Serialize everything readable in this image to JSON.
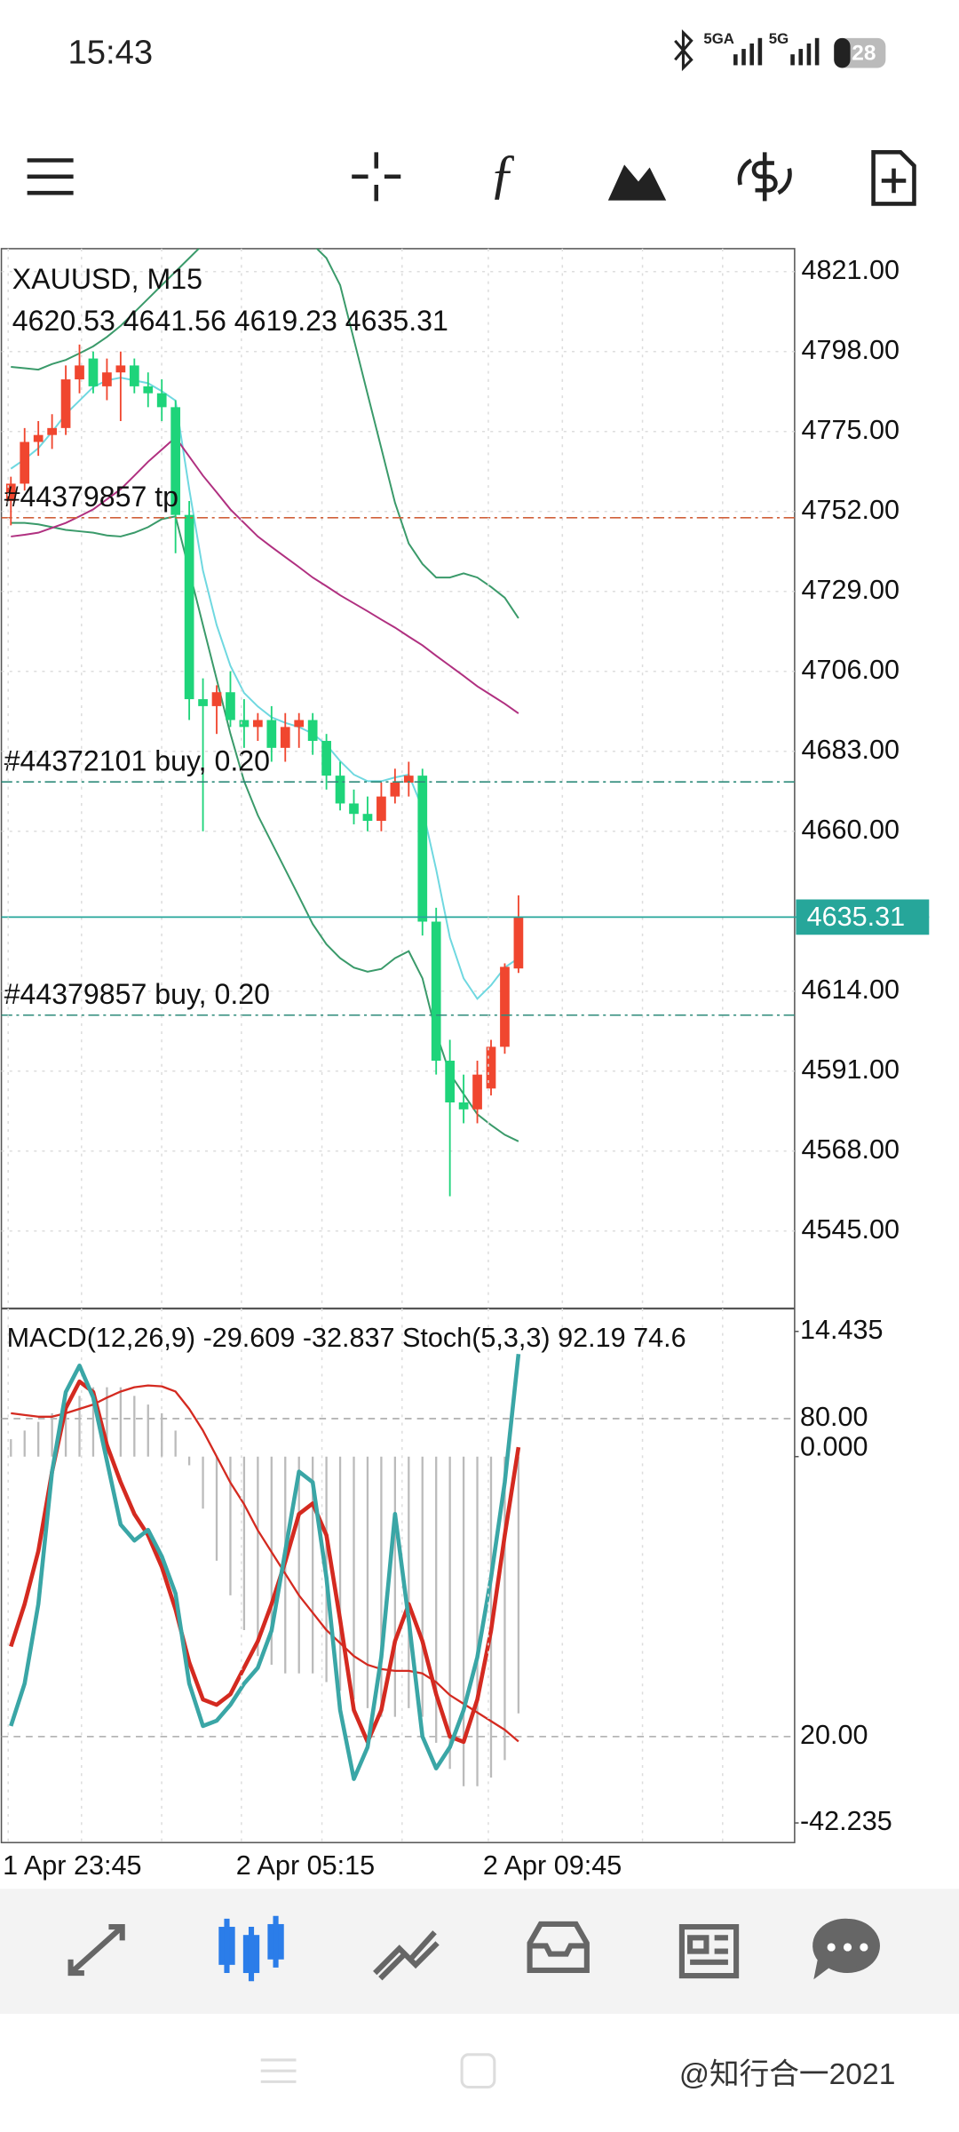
{
  "status_bar": {
    "time": "15:43",
    "net1": "5GA",
    "net2": "5G",
    "battery": "28"
  },
  "watermark": "@知行合一2021",
  "chart_data": [
    {
      "type": "candlestick",
      "title": "XAUUSD, M15",
      "categories": [
        "1 Apr 23:45",
        null,
        null,
        null,
        null,
        null,
        null,
        null,
        null,
        null,
        null,
        null,
        null,
        null,
        null,
        null,
        null,
        "2 Apr 05:15",
        null,
        null,
        null,
        null,
        null,
        null,
        null,
        null,
        null,
        null,
        null,
        null,
        null,
        null,
        null,
        null,
        null,
        "2 Apr 09:45",
        null,
        null
      ],
      "candles": [
        {
          "open": 4755,
          "high": 4762,
          "low": 4748,
          "close": 4760
        },
        {
          "open": 4760,
          "high": 4776,
          "low": 4758,
          "close": 4772
        },
        {
          "open": 4772,
          "high": 4778,
          "low": 4768,
          "close": 4774
        },
        {
          "open": 4774,
          "high": 4780,
          "low": 4770,
          "close": 4776
        },
        {
          "open": 4776,
          "high": 4794,
          "low": 4774,
          "close": 4790
        },
        {
          "open": 4790,
          "high": 4800,
          "low": 4786,
          "close": 4794
        },
        {
          "open": 4796,
          "high": 4798,
          "low": 4786,
          "close": 4788
        },
        {
          "open": 4788,
          "high": 4796,
          "low": 4784,
          "close": 4792
        },
        {
          "open": 4792,
          "high": 4798,
          "low": 4778,
          "close": 4794
        },
        {
          "open": 4794,
          "high": 4796,
          "low": 4786,
          "close": 4788
        },
        {
          "open": 4788,
          "high": 4792,
          "low": 4782,
          "close": 4786
        },
        {
          "open": 4786,
          "high": 4790,
          "low": 4778,
          "close": 4782
        },
        {
          "open": 4782,
          "high": 4784,
          "low": 4740,
          "close": 4751
        },
        {
          "open": 4751,
          "high": 4755,
          "low": 4692,
          "close": 4698
        },
        {
          "open": 4698,
          "high": 4704,
          "low": 4660,
          "close": 4696
        },
        {
          "open": 4696,
          "high": 4702,
          "low": 4688,
          "close": 4700
        },
        {
          "open": 4700,
          "high": 4706,
          "low": 4690,
          "close": 4692
        },
        {
          "open": 4692,
          "high": 4698,
          "low": 4684,
          "close": 4690
        },
        {
          "open": 4690,
          "high": 4694,
          "low": 4686,
          "close": 4692
        },
        {
          "open": 4692,
          "high": 4696,
          "low": 4680,
          "close": 4684
        },
        {
          "open": 4684,
          "high": 4694,
          "low": 4680,
          "close": 4690
        },
        {
          "open": 4690,
          "high": 4694,
          "low": 4684,
          "close": 4692
        },
        {
          "open": 4692,
          "high": 4694,
          "low": 4682,
          "close": 4686
        },
        {
          "open": 4686,
          "high": 4688,
          "low": 4672,
          "close": 4676
        },
        {
          "open": 4676,
          "high": 4680,
          "low": 4666,
          "close": 4668
        },
        {
          "open": 4668,
          "high": 4672,
          "low": 4662,
          "close": 4665
        },
        {
          "open": 4665,
          "high": 4670,
          "low": 4660,
          "close": 4663
        },
        {
          "open": 4663,
          "high": 4674,
          "low": 4660,
          "close": 4670
        },
        {
          "open": 4670,
          "high": 4678,
          "low": 4668,
          "close": 4674
        },
        {
          "open": 4674,
          "high": 4680,
          "low": 4670,
          "close": 4676
        },
        {
          "open": 4676,
          "high": 4678,
          "low": 4630,
          "close": 4634
        },
        {
          "open": 4634,
          "high": 4638,
          "low": 4590,
          "close": 4594
        },
        {
          "open": 4594,
          "high": 4600,
          "low": 4555,
          "close": 4582
        },
        {
          "open": 4582,
          "high": 4590,
          "low": 4576,
          "close": 4580
        },
        {
          "open": 4580,
          "high": 4594,
          "low": 4576,
          "close": 4590
        },
        {
          "open": 4586,
          "high": 4600,
          "low": 4584,
          "close": 4598
        },
        {
          "open": 4598,
          "high": 4622,
          "low": 4596,
          "close": 4621
        },
        {
          "open": 4620.53,
          "high": 4641.56,
          "low": 4619.23,
          "close": 4635.31
        }
      ],
      "up_color": "#f0462f",
      "down_color": "#1ed47a",
      "lines": [
        {
          "color": "#3a9a6a",
          "values": [
            4793.6,
            4793.2,
            4792.8,
            4794.4,
            4795.6,
            4797.5,
            4799.5,
            4802.2,
            4805.4,
            4809.3,
            4813.2,
            4817.1,
            4821,
            4824.9,
            4828.8,
            4830.8,
            4832.7,
            4833.5,
            4834.7,
            4833.5,
            4832.7,
            4830.8,
            4828.8,
            4824.9,
            4817.1,
            4801.5,
            4785.8,
            4770.2,
            4754.5,
            4742.8,
            4736.9,
            4733,
            4733,
            4734.2,
            4733,
            4730.3,
            4727.2,
            4721.3
          ]
        },
        {
          "color": "#3a9a6a",
          "values": [
            4748.7,
            4748.7,
            4748.3,
            4747.5,
            4746.7,
            4746.3,
            4745.9,
            4745.1,
            4744.8,
            4745.9,
            4747.5,
            4749.8,
            4750.6,
            4735,
            4719.3,
            4703.7,
            4688.1,
            4674.4,
            4664.6,
            4656.8,
            4649,
            4641.2,
            4633.3,
            4627.5,
            4623.5,
            4620.8,
            4619.6,
            4620.4,
            4623.5,
            4625.5,
            4617.7,
            4602,
            4590.3,
            4584.4,
            4578.6,
            4575.5,
            4572.7,
            4570.8
          ]
        },
        {
          "color": "#6fd8e0",
          "values": [
            4764.3,
            4767,
            4770.2,
            4774.9,
            4780,
            4783.9,
            4787.8,
            4789.7,
            4790.5,
            4789.7,
            4788.9,
            4786.6,
            4783.9,
            4758.4,
            4735,
            4719.3,
            4707.6,
            4699.8,
            4695.9,
            4692.8,
            4691.2,
            4690,
            4688.1,
            4684.9,
            4680.2,
            4676.3,
            4674.4,
            4674.4,
            4675.5,
            4676.3,
            4666.6,
            4649,
            4629.4,
            4617.7,
            4611.8,
            4615.7,
            4620.8,
            4623.5
          ]
        },
        {
          "color": "#b03080",
          "values": [
            4744.8,
            4745.3,
            4745.9,
            4747.3,
            4748.7,
            4750.6,
            4752.6,
            4755.5,
            4758.4,
            4762.3,
            4766.3,
            4769.8,
            4773.3,
            4767.8,
            4762.3,
            4757.5,
            4752.6,
            4748.7,
            4744.8,
            4741.8,
            4738.9,
            4736,
            4733,
            4730.5,
            4727.9,
            4725.6,
            4723.3,
            4720.9,
            4718.6,
            4716,
            4713.5,
            4710.5,
            4707.6,
            4704.7,
            4701.7,
            4699.2,
            4696.7,
            4693.9
          ]
        }
      ],
      "orders": [
        {
          "label": "#44379857 tp",
          "price": 4750.2,
          "color": "#d0603a"
        },
        {
          "label": "#44372101 buy, 0.20",
          "price": 4674.2,
          "color": "#2e8b7a"
        },
        {
          "label": "#44379857 buy, 0.20",
          "price": 4607.1,
          "color": "#2e8b7a"
        }
      ],
      "current_color": "#26a69a",
      "ylim": [
        4522.7,
        4827.6
      ],
      "yticks": [
        {
          "value": 4821,
          "label": "4821.00"
        },
        {
          "value": 4798,
          "label": "4798.00"
        },
        {
          "value": 4775,
          "label": "4775.00"
        },
        {
          "value": 4752,
          "label": "4752.00"
        },
        {
          "value": 4729,
          "label": "4729.00"
        },
        {
          "value": 4706,
          "label": "4706.00"
        },
        {
          "value": 4683,
          "label": "4683.00"
        },
        {
          "value": 4660,
          "label": "4660.00"
        },
        {
          "value": 4614,
          "label": "4614.00"
        },
        {
          "value": 4591,
          "label": "4591.00"
        },
        {
          "value": 4568,
          "label": "4568.00"
        },
        {
          "value": 4545,
          "label": "4545.00"
        }
      ],
      "grid": true
    },
    {
      "type": "oscillator",
      "macd_title": "MACD(12,26,9)",
      "stoch_title": "Stoch(5,3,3)",
      "histogram": {
        "color": "#bbbbbb",
        "values": [
          2,
          3,
          4,
          5,
          6,
          7,
          8,
          8,
          8,
          7,
          6,
          5,
          3,
          -1,
          -6,
          -12,
          -16,
          -20,
          -23,
          -24,
          -25,
          -25,
          -25,
          -26,
          -27,
          -28,
          -29,
          -30,
          -30,
          -29,
          -30,
          -33,
          -36,
          -38,
          -38,
          -37,
          -35,
          -29.609
        ],
        "axis": "y2"
      },
      "signal": {
        "color": "#d42a20",
        "values": [
          5,
          4.8,
          4.6,
          4.6,
          5,
          5.5,
          6,
          6.8,
          7.5,
          8,
          8.2,
          8.1,
          7.5,
          5.5,
          3,
          0,
          -3,
          -5.5,
          -8.5,
          -11,
          -13.5,
          -16,
          -18,
          -20,
          -21.5,
          -23,
          -24,
          -24.5,
          -24.7,
          -24.7,
          -25,
          -26,
          -27.5,
          -28.5,
          -29.5,
          -30.5,
          -31.5,
          -32.837
        ],
        "axis": "y2"
      },
      "stoch_k": {
        "color": "#3aa6a6",
        "values": [
          22,
          30,
          45,
          70,
          85,
          90,
          84,
          72,
          60,
          57,
          59,
          54,
          47,
          30,
          22,
          23,
          26,
          30,
          33,
          40,
          55,
          70,
          68,
          50,
          25,
          12,
          18,
          35,
          62,
          42,
          20,
          14,
          18,
          25,
          35,
          50,
          68,
          92.19
        ]
      },
      "stoch_d": {
        "color": "#d42a20",
        "values": [
          37,
          45,
          55,
          70,
          82,
          87,
          85,
          75,
          68,
          62,
          58,
          52,
          44,
          34,
          27,
          26,
          28,
          33,
          38,
          45,
          53,
          62,
          64,
          58,
          42,
          25,
          19,
          25,
          38,
          45,
          38,
          28,
          20,
          19,
          27,
          40,
          58,
          74.6
        ]
      },
      "ylim": [
        0,
        100
      ],
      "yticks": [
        {
          "value": 80,
          "label": "80.00"
        },
        {
          "value": 20,
          "label": "20.00"
        }
      ],
      "y2lim": [
        -44.5,
        16.6
      ],
      "y2ticks": [
        14.435,
        {
          "value": 0,
          "label": "0.000"
        },
        -42.235
      ]
    }
  ]
}
